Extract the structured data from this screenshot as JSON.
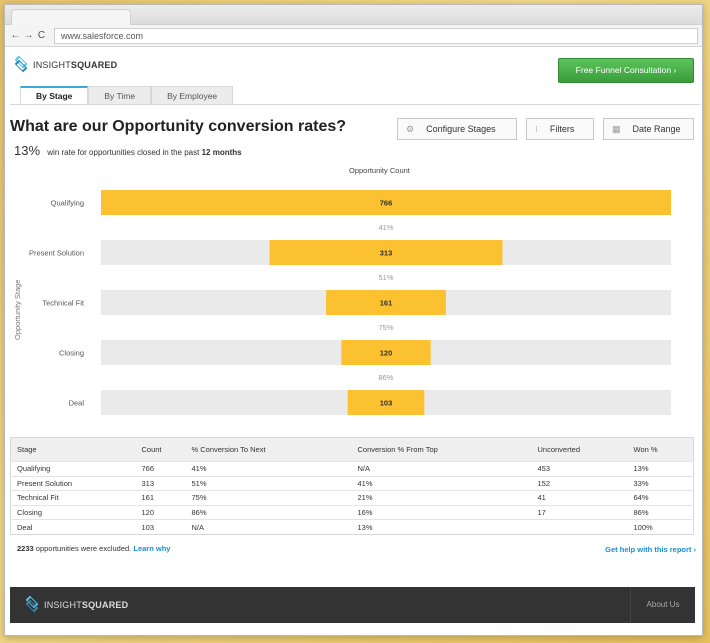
{
  "browser": {
    "url": "www.salesforce.com",
    "back": "←",
    "forward": "→",
    "reload": "C"
  },
  "header": {
    "logo_regular": "INSIGHT",
    "logo_bold": "SQUARED",
    "cta_label": "Free Funnel Consultation  ›"
  },
  "tabs": [
    {
      "label": "By Stage",
      "active": true
    },
    {
      "label": "By Time",
      "active": false
    },
    {
      "label": "By Employee",
      "active": false
    }
  ],
  "page": {
    "title": "What are our Opportunity conversion rates?",
    "win_rate": "13%",
    "subtitle_text": "win rate for opportunities closed in the past",
    "subtitle_period": "12 months"
  },
  "toolbar": {
    "configure": "Configure Stages",
    "filters": "Filters",
    "date_range": "Date Range"
  },
  "chart_data": {
    "type": "bar",
    "title": "Opportunity Count",
    "ylabel": "Opportunity Stage",
    "categories": [
      "Qualifying",
      "Present Solution",
      "Technical Fit",
      "Closing",
      "Deal"
    ],
    "values": [
      766,
      313,
      161,
      120,
      103
    ],
    "conversion_labels": [
      "41%",
      "51%",
      "75%",
      "86%"
    ],
    "xlim": [
      0,
      766
    ],
    "bar_color": "#fbc130",
    "track_color": "#eaeaea"
  },
  "table": {
    "headers": [
      "Stage",
      "Count",
      "% Conversion To Next",
      "Conversion % From Top",
      "Unconverted",
      "Won %"
    ],
    "rows": [
      [
        "Qualifying",
        "766",
        "41%",
        "N/A",
        "453",
        "13%"
      ],
      [
        "Present Solution",
        "313",
        "51%",
        "41%",
        "152",
        "33%"
      ],
      [
        "Technical Fit",
        "161",
        "75%",
        "21%",
        "41",
        "64%"
      ],
      [
        "Closing",
        "120",
        "86%",
        "16%",
        "17",
        "86%"
      ],
      [
        "Deal",
        "103",
        "N/A",
        "13%",
        "",
        "100%"
      ]
    ]
  },
  "notes": {
    "excluded_count": "2233",
    "excluded_text": "opportunities were excluded.",
    "learn_why": "Learn why",
    "help": "Get help with this report  ›"
  },
  "footer": {
    "logo_regular": "INSIGHT",
    "logo_bold": "SQUARED",
    "about": "About Us"
  },
  "icons": {
    "configure": "gear-icon",
    "filters": "filter-icon",
    "date_range": "calendar-icon"
  }
}
